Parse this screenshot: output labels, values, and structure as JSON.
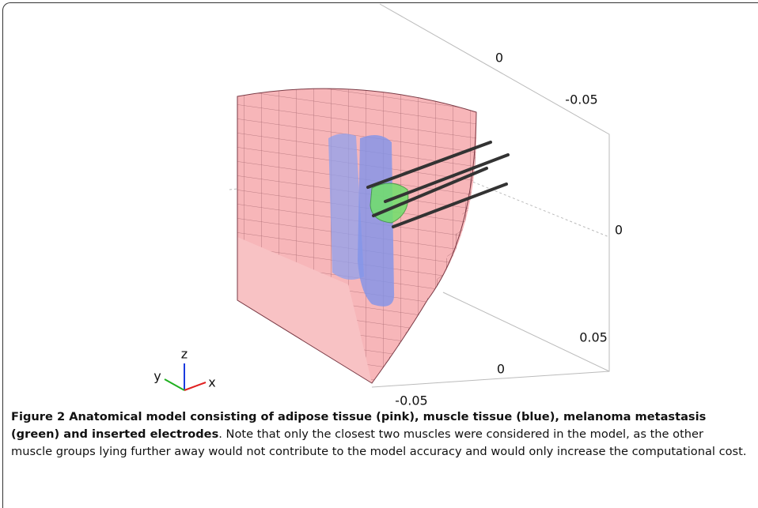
{
  "figure": {
    "axis_labels": [
      "0",
      "-0.05",
      "0",
      "0.05",
      "0",
      "-0.05"
    ],
    "triad": {
      "z": "z",
      "y": "y",
      "x": "x"
    },
    "caption": {
      "title": "Figure 2 Anatomical model consisting of adipose tissue (pink), muscle tissue (blue), melanoma metastasis (green) and inserted electrodes",
      "text": ". Note that only the closest two muscles were considered in the model, as the other muscle groups lying further away would not contribute to the model accuracy and would only increase the computational cost."
    }
  }
}
